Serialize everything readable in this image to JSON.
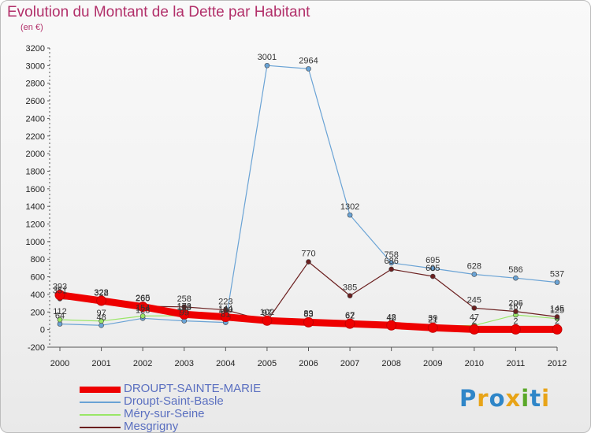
{
  "title": "Evolution du Montant de la Dette par Habitant",
  "subtitle": "(en €)",
  "logo": {
    "text": "Proxiti",
    "letters": [
      "P",
      "r",
      "o",
      "x",
      "i",
      "t",
      "i"
    ],
    "colors": [
      "#2f86c8",
      "#e8a418",
      "#2f86c8",
      "#e8a418",
      "#5aa829",
      "#2f86c8",
      "#e8a418"
    ]
  },
  "chart_data": {
    "type": "line",
    "x": [
      "2000",
      "2001",
      "2002",
      "2003",
      "2004",
      "2005",
      "2006",
      "2007",
      "2008",
      "2009",
      "2010",
      "2011",
      "2012"
    ],
    "ylim": [
      -200,
      3200
    ],
    "yticks": [
      -200,
      0,
      200,
      400,
      600,
      800,
      1000,
      1200,
      1400,
      1600,
      1800,
      2000,
      2200,
      2400,
      2600,
      2800,
      3000,
      3200
    ],
    "grid": false,
    "legend_position": "bottom-left",
    "series": [
      {
        "name": "DROUPT-SAINTE-MARIE",
        "color": "#ee0000",
        "width": 9,
        "marker": 6,
        "values": [
          393,
          328,
          260,
          173,
          144,
          102,
          83,
          67,
          48,
          21,
          2,
          2,
          2
        ]
      },
      {
        "name": "Droupt-Saint-Basle",
        "color": "#6aa3d5",
        "width": 1.2,
        "marker": 3,
        "values": [
          64,
          48,
          128,
          99,
          81,
          3001,
          2964,
          1302,
          758,
          695,
          628,
          586,
          537
        ]
      },
      {
        "name": "Méry-sur-Seine",
        "color": "#99e666",
        "width": 1.2,
        "marker": 3,
        "values": [
          112,
          97,
          154,
          158,
          130,
          97,
          89,
          62,
          42,
          39,
          47,
          167,
          125
        ]
      },
      {
        "name": "Mesgrigny",
        "color": "#6b1f1f",
        "width": 1.2,
        "marker": 3,
        "values": [
          351,
          322,
          265,
          258,
          223,
          97,
          770,
          385,
          686,
          605,
          245,
          206,
          145
        ]
      }
    ]
  }
}
